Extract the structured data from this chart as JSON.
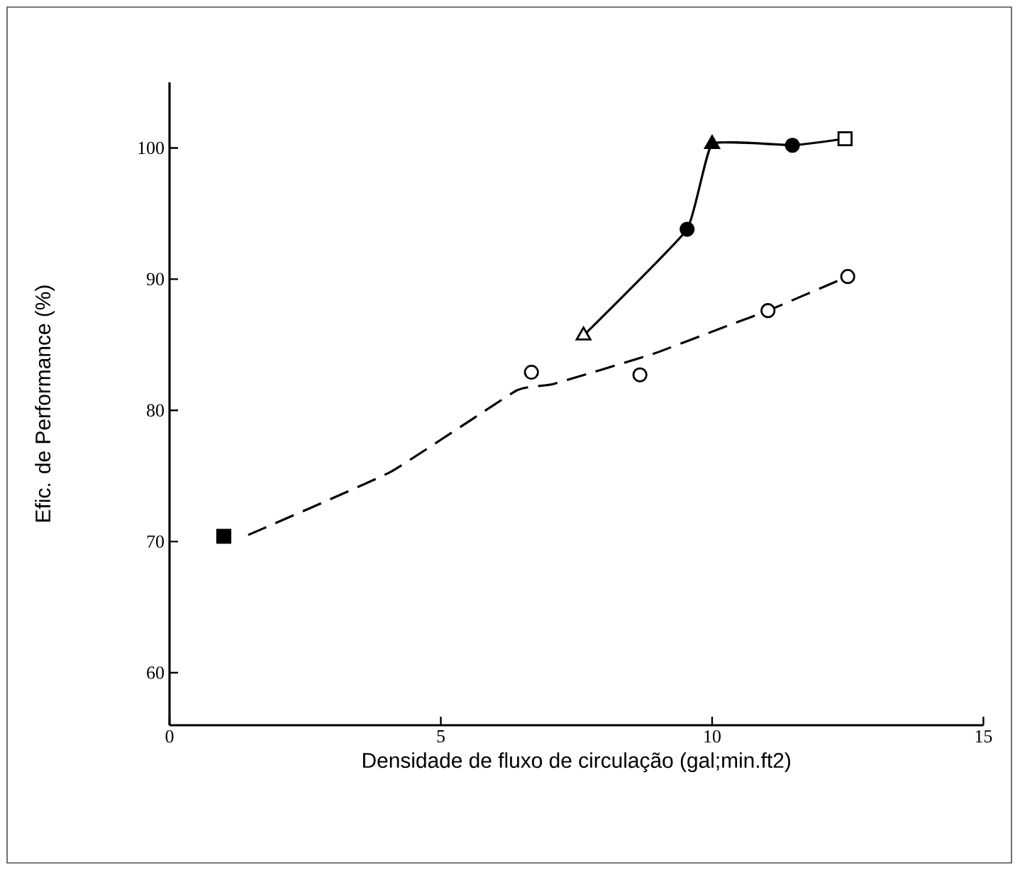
{
  "chart_data": {
    "type": "line",
    "xlabel": "Densidade de fluxo de circulação (gal;min.ft2)",
    "ylabel": "Efic. de Performance (%)",
    "xlim": [
      0,
      15
    ],
    "ylim": [
      56,
      105
    ],
    "xticks": [
      0,
      5,
      10,
      15
    ],
    "yticks": [
      60,
      70,
      80,
      90,
      100
    ],
    "series": [
      {
        "line_style": "dashed",
        "marker": "none",
        "color": "#000000",
        "x": [
          1.45,
          4.07,
          6.39,
          7.07,
          8.91,
          10.32,
          11.03,
          12.5
        ],
        "values": [
          70.5,
          75.3,
          81.5,
          82.0,
          84.3,
          86.5,
          87.6,
          90.2
        ]
      },
      {
        "line_style": "solid",
        "marker": "none",
        "color": "#000000",
        "x": [
          7.63,
          9.54,
          10.0,
          11.48,
          12.45
        ],
        "values": [
          85.7,
          93.8,
          100.3,
          100.2,
          100.7
        ]
      },
      {
        "type": "scatter",
        "marker": "square",
        "color": "#000000",
        "x": [
          1.0
        ],
        "values": [
          70.4
        ]
      },
      {
        "type": "scatter",
        "marker": "circle",
        "color": "#ffffff",
        "x": [
          6.67,
          8.67,
          11.03,
          12.5
        ],
        "values": [
          82.9,
          82.7,
          87.6,
          90.2
        ]
      },
      {
        "type": "scatter",
        "marker": "triangle",
        "color": "#ffffff",
        "x": [
          7.63
        ],
        "values": [
          85.7
        ]
      },
      {
        "type": "scatter",
        "marker": "circle",
        "color": "#000000",
        "x": [
          9.54,
          11.48
        ],
        "values": [
          93.8,
          100.2
        ]
      },
      {
        "type": "scatter",
        "marker": "triangle",
        "color": "#000000",
        "x": [
          10.0
        ],
        "values": [
          100.3
        ]
      },
      {
        "type": "scatter",
        "marker": "square",
        "color": "#ffffff",
        "x": [
          12.45
        ],
        "values": [
          100.7
        ]
      }
    ]
  }
}
